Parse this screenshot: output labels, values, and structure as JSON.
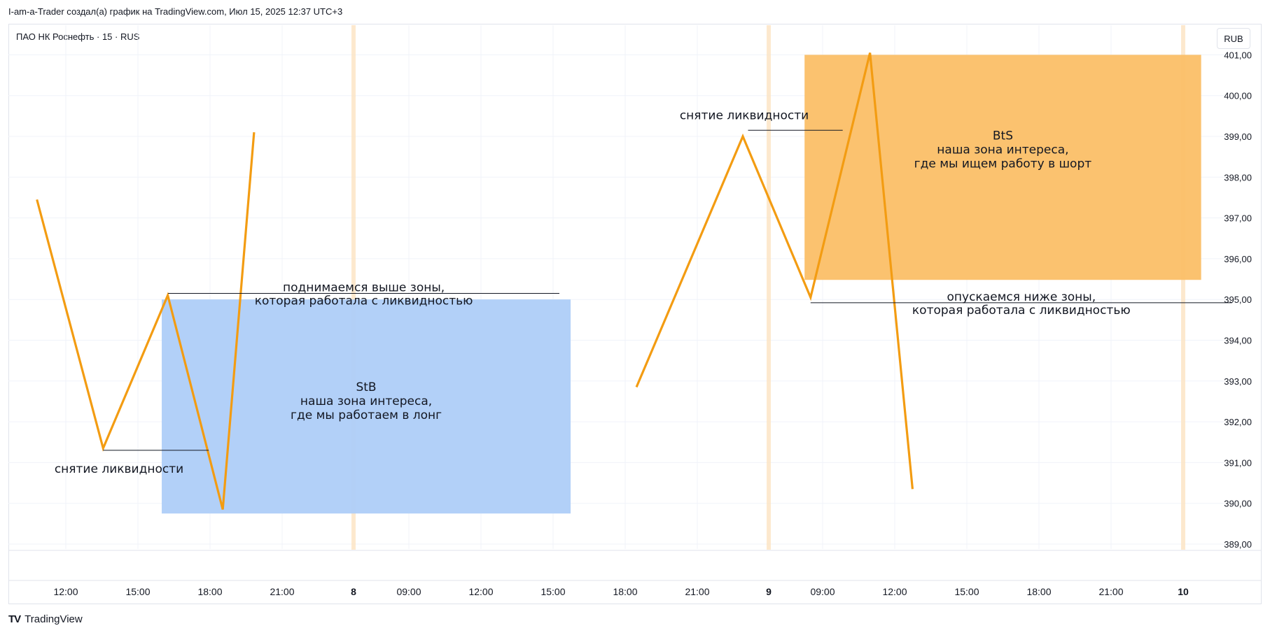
{
  "header": {
    "caption": "I-am-a-Trader создал(а) график на TradingView.com, Июл 15, 2025 12:37 UTC+3",
    "symbol": "ПАО НК Роснефть · 15 · RUS",
    "currency": "RUB"
  },
  "footer": {
    "brand": "TradingView",
    "logo_glyph": "TV"
  },
  "colors": {
    "line": "#f39c12",
    "zone_long": "#aecdf8",
    "zone_short": "#fbbf67",
    "session_divider": "#fde3c2",
    "grid": "#f0f3fa",
    "annotation_line": "#131722"
  },
  "chart_data": {
    "type": "line",
    "y_unit": "RUB",
    "ylim": [
      388.7,
      401.4
    ],
    "y_ticks": [
      "389,00",
      "390,00",
      "391,00",
      "392,00",
      "393,00",
      "394,00",
      "395,00",
      "396,00",
      "397,00",
      "398,00",
      "399,00",
      "400,00",
      "401,00"
    ],
    "x_ticks": [
      {
        "label": "12:00",
        "bold": false
      },
      {
        "label": "15:00",
        "bold": false
      },
      {
        "label": "18:00",
        "bold": false
      },
      {
        "label": "21:00",
        "bold": false
      },
      {
        "label": "8",
        "bold": true
      },
      {
        "label": "09:00",
        "bold": false
      },
      {
        "label": "12:00",
        "bold": false
      },
      {
        "label": "15:00",
        "bold": false
      },
      {
        "label": "18:00",
        "bold": false
      },
      {
        "label": "21:00",
        "bold": false
      },
      {
        "label": "9",
        "bold": true
      },
      {
        "label": "09:00",
        "bold": false
      },
      {
        "label": "12:00",
        "bold": false
      },
      {
        "label": "15:00",
        "bold": false
      },
      {
        "label": "18:00",
        "bold": false
      },
      {
        "label": "21:00",
        "bold": false
      },
      {
        "label": "10",
        "bold": true
      }
    ],
    "series": [
      {
        "segment": 1,
        "points": [
          {
            "x": "Jul 7 10:48",
            "y": 397.45
          },
          {
            "x": "Jul 7 13:33",
            "y": 391.35
          },
          {
            "x": "Jul 7 16:14",
            "y": 395.1
          },
          {
            "x": "Jul 7 18:31",
            "y": 389.85
          },
          {
            "x": "Jul 7 19:49",
            "y": 399.1
          }
        ]
      },
      {
        "segment": 2,
        "points": [
          {
            "x": "Jul 8 18:27",
            "y": 392.85
          },
          {
            "x": "Jul 8 22:52",
            "y": 399.0
          },
          {
            "x": "Jul 9 08:30",
            "y": 395.05
          },
          {
            "x": "Jul 9 10:58",
            "y": 401.05
          },
          {
            "x": "Jul 9 12:44",
            "y": 390.35
          }
        ]
      }
    ],
    "zones": [
      {
        "kind": "long",
        "x_start": "Jul 7 15:59",
        "x_end": "Jul 8 15:43",
        "y_low": 389.75,
        "y_high": 395.0,
        "title": "StB",
        "line1": "наша зона интереса,",
        "line2": "где мы работаем в лонг"
      },
      {
        "kind": "short",
        "x_start": "Jul 9 08:15",
        "x_end": "Jul 9 24:43",
        "y_low": 395.48,
        "y_high": 401.0,
        "title": "BtS",
        "line1": "наша зона интереса,",
        "line2": "где мы ищем работу в шорт"
      }
    ],
    "annotations": [
      {
        "text": "снятие ликвидности",
        "y": 391.3,
        "x_start": "Jul 7 13:33",
        "x_end": "Jul 7 17:56"
      },
      {
        "text": "снятие ликвидности",
        "y": 399.15,
        "x_start": "Jul 8 23:05",
        "x_end": "Jul 9 09:50"
      },
      {
        "text": "поднимаемся выше зоны,",
        "text2": "которая работала с ликвидностью",
        "y": 395.15,
        "x_start": "Jul 7 16:15",
        "x_end": "Jul 8 15:15"
      },
      {
        "text": "опускаемся ниже зоны,",
        "text2": "которая работала с ликвидностью",
        "y": 394.92,
        "x_start": "Jul 9 08:30",
        "x_end": "Jul 9 26:00"
      }
    ]
  }
}
